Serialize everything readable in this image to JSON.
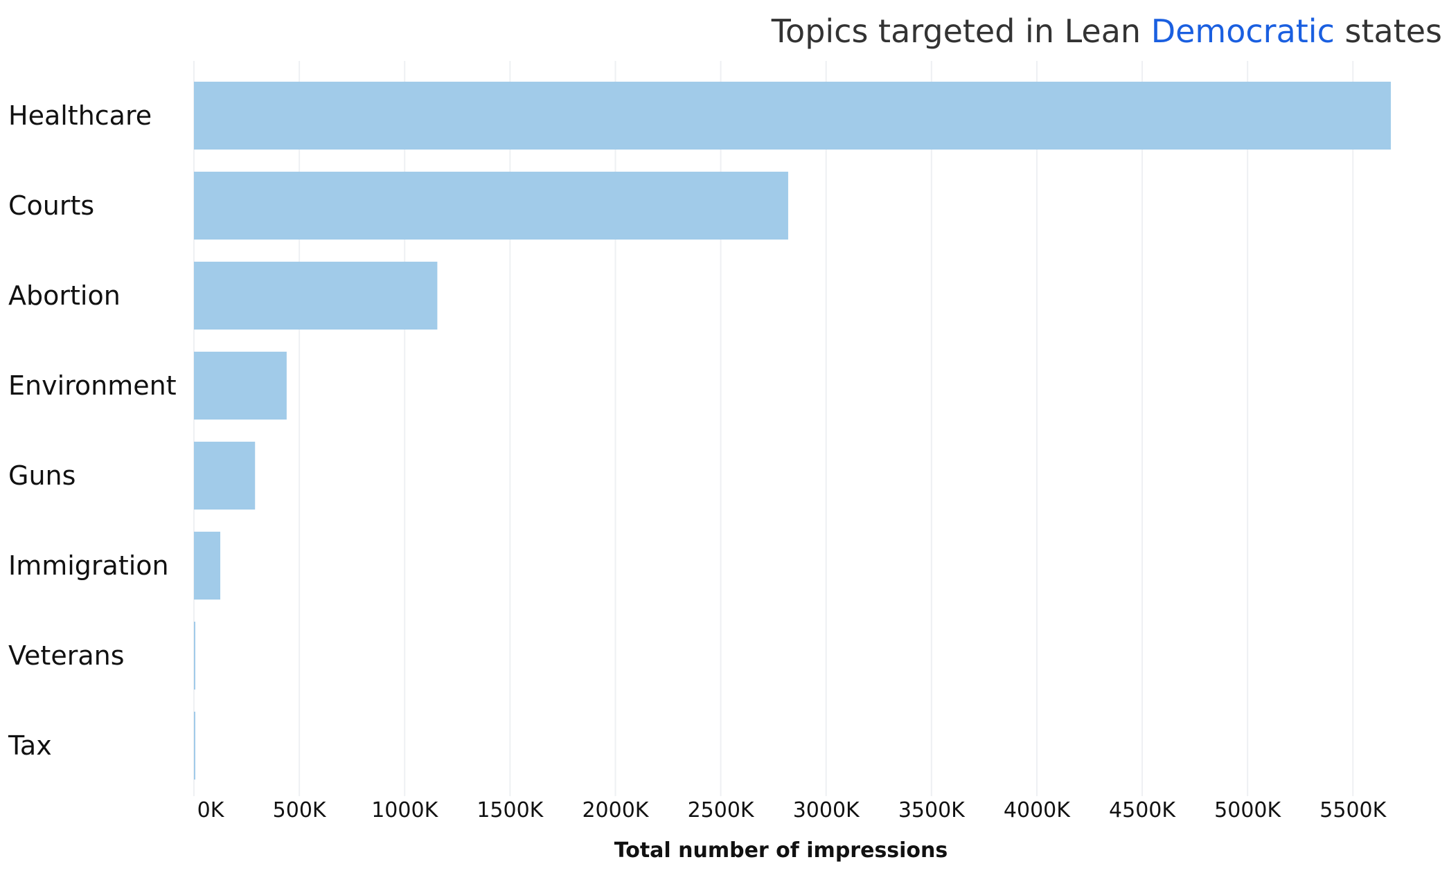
{
  "chart_data": {
    "type": "bar",
    "orientation": "horizontal",
    "title": {
      "prefix": "Topics targeted in Lean ",
      "highlight": "Democratic",
      "suffix": " states"
    },
    "categories": [
      "Healthcare",
      "Courts",
      "Abortion",
      "Environment",
      "Guns",
      "Immigration",
      "Veterans",
      "Tax"
    ],
    "values": [
      5680,
      2820,
      1155,
      440,
      290,
      125,
      4,
      3
    ],
    "value_unit": "K",
    "xlabel": "Total number of impressions",
    "ylabel": "",
    "xlim": [
      0,
      5900
    ],
    "xticks": [
      0,
      500,
      1000,
      1500,
      2000,
      2500,
      3000,
      3500,
      4000,
      4500,
      5000,
      5500
    ],
    "xtick_labels": [
      "0K",
      "500K",
      "1000K",
      "1500K",
      "2000K",
      "2500K",
      "3000K",
      "3500K",
      "4000K",
      "4500K",
      "5000K",
      "5500K"
    ],
    "grid": "vertical",
    "legend": "none",
    "colors": {
      "bar": "#a1cbe9",
      "accent": "#1a5fe0",
      "title": "#333333",
      "text": "#111111",
      "grid": "#eef0f3"
    }
  }
}
